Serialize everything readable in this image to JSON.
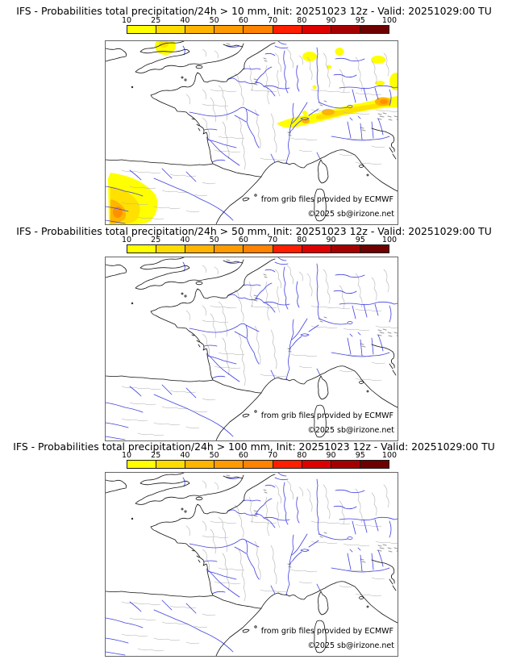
{
  "panels": [
    {
      "title": "IFS - Probabilities total precipitation/24h > 10 mm, Init: 20251023 12z - Valid: 20251029:00 TU",
      "attribution_line1": "from grib files provided by ECMWF",
      "attribution_line2": "©2025 sb@irizone.net"
    },
    {
      "title": "IFS - Probabilities total precipitation/24h > 50 mm, Init: 20251023 12z - Valid: 20251029:00 TU",
      "attribution_line1": "from grib files provided by ECMWF",
      "attribution_line2": "©2025 sb@irizone.net"
    },
    {
      "title": "IFS - Probabilities total precipitation/24h > 100 mm, Init: 20251023 12z - Valid: 20251029:00 TU",
      "attribution_line1": "from grib files provided by ECMWF",
      "attribution_line2": "©2025 sb@irizone.net"
    }
  ],
  "colorbar": {
    "tick_labels": [
      "10",
      "25",
      "40",
      "50",
      "60",
      "70",
      "80",
      "90",
      "95",
      "100"
    ],
    "segment_colors": [
      "#ffff00",
      "#ffdc00",
      "#ffb400",
      "#ff9b00",
      "#ff8200",
      "#ff1e00",
      "#dc0000",
      "#a50000",
      "#6e0000"
    ]
  },
  "overlay_colors": {
    "prob_low": "#ffff00",
    "prob_mid": "#ffe000",
    "prob_high": "#ffb400",
    "prob_higher": "#ff9000"
  },
  "map_line_colors": {
    "coastline": "#111111",
    "rivers": "#4040e0",
    "admin_boundaries": "#b4b4b4",
    "urban_areas": "#989898"
  }
}
